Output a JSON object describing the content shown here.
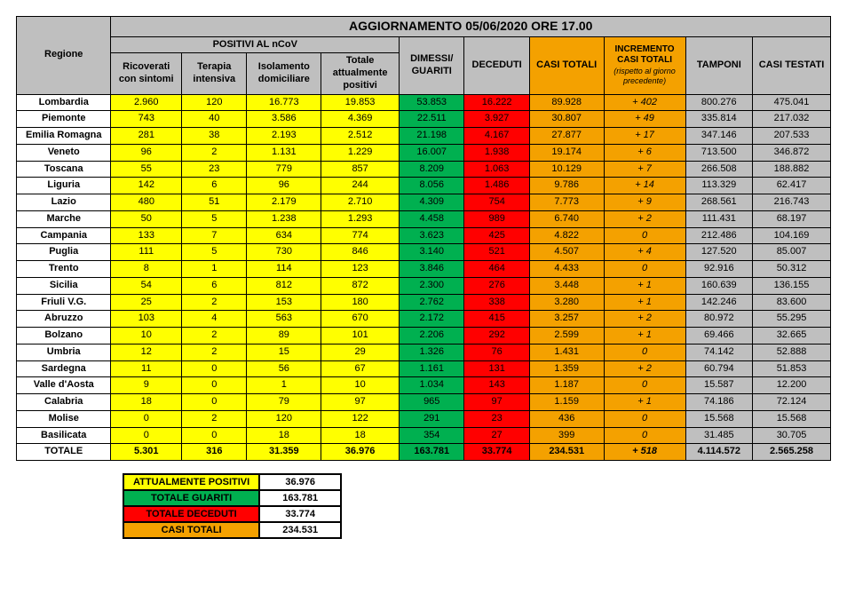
{
  "title": "AGGIORNAMENTO 05/06/2020 ORE 17.00",
  "headers": {
    "regione": "Regione",
    "positivi_group": "POSITIVI AL nCoV",
    "ricoverati": "Ricoverati con sintomi",
    "terapia": "Terapia intensiva",
    "isolamento": "Isolamento domiciliare",
    "tot_pos": "Totale attualmente positivi",
    "dimessi": "DIMESSI/ GUARITI",
    "deceduti": "DECEDUTI",
    "casi_totali": "CASI TOTALI",
    "incremento": "INCREMENTO CASI TOTALI",
    "incremento_sub": "(rispetto al giorno precedente)",
    "tamponi": "TAMPONI",
    "testati": "CASI TESTATI"
  },
  "col_colors": [
    "region",
    "yellow",
    "yellow",
    "yellow",
    "yellow",
    "green",
    "red",
    "orange",
    "orange inc",
    "grey",
    "grey"
  ],
  "rows": [
    {
      "region": "Lombardia",
      "cells": [
        "2.960",
        "120",
        "16.773",
        "19.853",
        "53.853",
        "16.222",
        "89.928",
        "+ 402",
        "800.276",
        "475.041"
      ]
    },
    {
      "region": "Piemonte",
      "cells": [
        "743",
        "40",
        "3.586",
        "4.369",
        "22.511",
        "3.927",
        "30.807",
        "+ 49",
        "335.814",
        "217.032"
      ]
    },
    {
      "region": "Emilia Romagna",
      "cells": [
        "281",
        "38",
        "2.193",
        "2.512",
        "21.198",
        "4.167",
        "27.877",
        "+ 17",
        "347.146",
        "207.533"
      ]
    },
    {
      "region": "Veneto",
      "cells": [
        "96",
        "2",
        "1.131",
        "1.229",
        "16.007",
        "1.938",
        "19.174",
        "+ 6",
        "713.500",
        "346.872"
      ]
    },
    {
      "region": "Toscana",
      "cells": [
        "55",
        "23",
        "779",
        "857",
        "8.209",
        "1.063",
        "10.129",
        "+ 7",
        "266.508",
        "188.882"
      ]
    },
    {
      "region": "Liguria",
      "cells": [
        "142",
        "6",
        "96",
        "244",
        "8.056",
        "1.486",
        "9.786",
        "+ 14",
        "113.329",
        "62.417"
      ]
    },
    {
      "region": "Lazio",
      "cells": [
        "480",
        "51",
        "2.179",
        "2.710",
        "4.309",
        "754",
        "7.773",
        "+ 9",
        "268.561",
        "216.743"
      ]
    },
    {
      "region": "Marche",
      "cells": [
        "50",
        "5",
        "1.238",
        "1.293",
        "4.458",
        "989",
        "6.740",
        "+ 2",
        "111.431",
        "68.197"
      ]
    },
    {
      "region": "Campania",
      "cells": [
        "133",
        "7",
        "634",
        "774",
        "3.623",
        "425",
        "4.822",
        "0",
        "212.486",
        "104.169"
      ]
    },
    {
      "region": "Puglia",
      "cells": [
        "111",
        "5",
        "730",
        "846",
        "3.140",
        "521",
        "4.507",
        "+ 4",
        "127.520",
        "85.007"
      ]
    },
    {
      "region": "Trento",
      "cells": [
        "8",
        "1",
        "114",
        "123",
        "3.846",
        "464",
        "4.433",
        "0",
        "92.916",
        "50.312"
      ]
    },
    {
      "region": "Sicilia",
      "cells": [
        "54",
        "6",
        "812",
        "872",
        "2.300",
        "276",
        "3.448",
        "+ 1",
        "160.639",
        "136.155"
      ]
    },
    {
      "region": "Friuli V.G.",
      "cells": [
        "25",
        "2",
        "153",
        "180",
        "2.762",
        "338",
        "3.280",
        "+ 1",
        "142.246",
        "83.600"
      ]
    },
    {
      "region": "Abruzzo",
      "cells": [
        "103",
        "4",
        "563",
        "670",
        "2.172",
        "415",
        "3.257",
        "+ 2",
        "80.972",
        "55.295"
      ]
    },
    {
      "region": "Bolzano",
      "cells": [
        "10",
        "2",
        "89",
        "101",
        "2.206",
        "292",
        "2.599",
        "+ 1",
        "69.466",
        "32.665"
      ]
    },
    {
      "region": "Umbria",
      "cells": [
        "12",
        "2",
        "15",
        "29",
        "1.326",
        "76",
        "1.431",
        "0",
        "74.142",
        "52.888"
      ]
    },
    {
      "region": "Sardegna",
      "cells": [
        "11",
        "0",
        "56",
        "67",
        "1.161",
        "131",
        "1.359",
        "+ 2",
        "60.794",
        "51.853"
      ]
    },
    {
      "region": "Valle d'Aosta",
      "cells": [
        "9",
        "0",
        "1",
        "10",
        "1.034",
        "143",
        "1.187",
        "0",
        "15.587",
        "12.200"
      ]
    },
    {
      "region": "Calabria",
      "cells": [
        "18",
        "0",
        "79",
        "97",
        "965",
        "97",
        "1.159",
        "+ 1",
        "74.186",
        "72.124"
      ]
    },
    {
      "region": "Molise",
      "cells": [
        "0",
        "2",
        "120",
        "122",
        "291",
        "23",
        "436",
        "0",
        "15.568",
        "15.568"
      ]
    },
    {
      "region": "Basilicata",
      "cells": [
        "0",
        "0",
        "18",
        "18",
        "354",
        "27",
        "399",
        "0",
        "31.485",
        "30.705"
      ]
    }
  ],
  "total": {
    "region": "TOTALE",
    "cells": [
      "5.301",
      "316",
      "31.359",
      "36.976",
      "163.781",
      "33.774",
      "234.531",
      "+ 518",
      "4.114.572",
      "2.565.258"
    ]
  },
  "summary": {
    "pos_lbl": "ATTUALMENTE POSITIVI",
    "pos_val": "36.976",
    "gua_lbl": "TOTALE GUARITI",
    "gua_val": "163.781",
    "dec_lbl": "TOTALE DECEDUTI",
    "dec_val": "33.774",
    "cas_lbl": "CASI TOTALI",
    "cas_val": "234.531"
  }
}
